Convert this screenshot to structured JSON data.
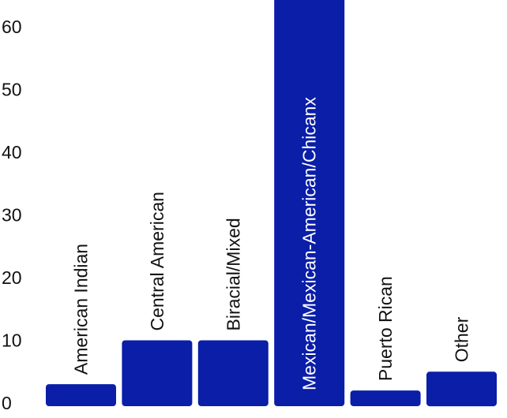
{
  "chart_data": {
    "type": "bar",
    "categories": [
      "American Indian",
      "Central American",
      "Biracial/Mixed",
      "Mexican/Mexican-American/Chicanx",
      "Puerto Rican",
      "Other"
    ],
    "values": [
      3,
      10,
      10,
      65,
      2,
      5
    ],
    "y_ticks": [
      "0",
      "10",
      "20",
      "30",
      "40",
      "50",
      "60"
    ],
    "ylim": [
      0,
      65
    ],
    "grid": false,
    "legend": "none",
    "colors": {
      "bar": "#0a1ea8",
      "label_on_bar": "#ffffff",
      "label": "#111111",
      "tick": "#111111"
    }
  }
}
